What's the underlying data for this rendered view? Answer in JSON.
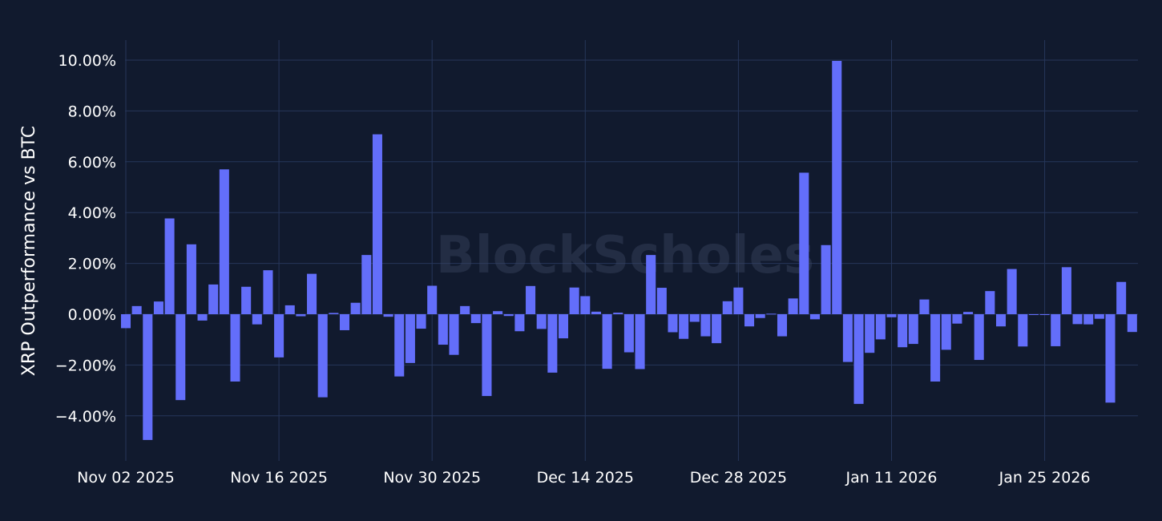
{
  "chart_data": {
    "type": "bar",
    "ylabel": "XRP Outperformance vs BTC",
    "watermark": "BlockScholes",
    "bar_color": "#636efa",
    "background": "#111a2e",
    "grid": true,
    "ylim": [
      -5.8,
      10.7
    ],
    "y_ticks": [
      10,
      8,
      6,
      4,
      2,
      0,
      -2,
      -4
    ],
    "y_tick_labels": [
      "10.00%",
      "8.00%",
      "6.00%",
      "4.00%",
      "2.00%",
      "0.00%",
      "−2.00%",
      "−4.00%"
    ],
    "x_start": "2025-11-02",
    "x_ticks": [
      "2025-11-02",
      "2025-11-16",
      "2025-11-30",
      "2025-12-14",
      "2025-12-28",
      "2026-01-11",
      "2026-01-25"
    ],
    "x_tick_labels": [
      "Nov 02 2025",
      "Nov 16 2025",
      "Nov 30 2025",
      "Dec 14 2025",
      "Dec 28 2025",
      "Jan 11 2026",
      "Jan 25 2026"
    ],
    "values": [
      -0.55,
      0.32,
      -4.95,
      0.5,
      3.77,
      -3.38,
      2.75,
      -0.25,
      1.17,
      5.7,
      -2.65,
      1.08,
      -0.4,
      1.73,
      -1.7,
      0.35,
      -0.08,
      1.59,
      -3.27,
      0.05,
      -0.63,
      0.45,
      2.33,
      7.08,
      -0.1,
      -2.45,
      -1.92,
      -0.57,
      1.12,
      -1.2,
      -1.6,
      0.32,
      -0.35,
      -3.22,
      0.12,
      -0.07,
      -0.67,
      1.11,
      -0.58,
      -2.3,
      -0.95,
      1.05,
      0.71,
      0.1,
      -2.15,
      0.06,
      -1.5,
      -2.16,
      2.33,
      1.04,
      -0.71,
      -0.97,
      -0.3,
      -0.87,
      -1.14,
      0.51,
      1.05,
      -0.48,
      -0.15,
      0.02,
      -0.87,
      0.62,
      5.57,
      -0.2,
      2.72,
      9.97,
      -1.88,
      -3.53,
      -1.52,
      -0.99,
      -0.12,
      -1.3,
      -1.17,
      0.58,
      -2.65,
      -1.4,
      -0.37,
      0.09,
      -1.8,
      0.91,
      -0.48,
      1.78,
      -1.27,
      -0.02,
      -0.02,
      -1.26,
      1.85,
      -0.39,
      -0.4,
      -0.18,
      -3.48,
      1.27,
      -0.7
    ]
  }
}
